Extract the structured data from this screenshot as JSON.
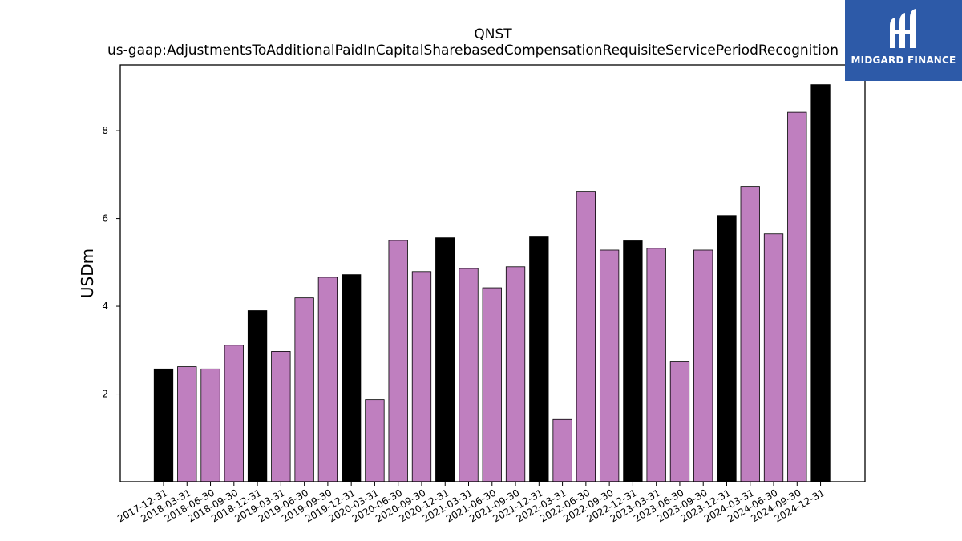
{
  "chart_data": {
    "type": "bar",
    "title": "QNST",
    "subtitle": "us-gaap:AdjustmentsToAdditionalPaidInCapitalSharebasedCompensationRequisiteServicePeriodRecognition",
    "xlabel": "",
    "ylabel": "USDm",
    "ylim": [
      0,
      9.5
    ],
    "yticks": [
      2,
      4,
      6,
      8
    ],
    "grid": false,
    "categories": [
      "2017-12-31",
      "2018-03-31",
      "2018-06-30",
      "2018-09-30",
      "2018-12-31",
      "2019-03-31",
      "2019-06-30",
      "2019-09-30",
      "2019-12-31",
      "2020-03-31",
      "2020-06-30",
      "2020-09-30",
      "2020-12-31",
      "2021-03-31",
      "2021-06-30",
      "2021-09-30",
      "2021-12-31",
      "2022-03-31",
      "2022-06-30",
      "2022-09-30",
      "2022-12-31",
      "2023-03-31",
      "2023-06-30",
      "2023-09-30",
      "2023-12-31",
      "2024-03-31",
      "2024-06-30",
      "2024-09-30",
      "2024-12-31"
    ],
    "values": [
      2.57,
      2.62,
      2.57,
      3.11,
      3.9,
      2.97,
      4.19,
      4.66,
      4.72,
      1.87,
      5.5,
      4.79,
      5.56,
      4.86,
      4.42,
      4.9,
      5.58,
      1.42,
      6.62,
      5.28,
      5.49,
      5.32,
      2.73,
      5.28,
      6.07,
      6.73,
      5.65,
      8.42,
      9.05
    ],
    "colors": {
      "quarter": "#bf7fbf",
      "year_end": "#000000",
      "edge": "#000000"
    }
  },
  "logo": {
    "text": "MIDGARD FINANCE",
    "background": "#2d5aa8"
  }
}
